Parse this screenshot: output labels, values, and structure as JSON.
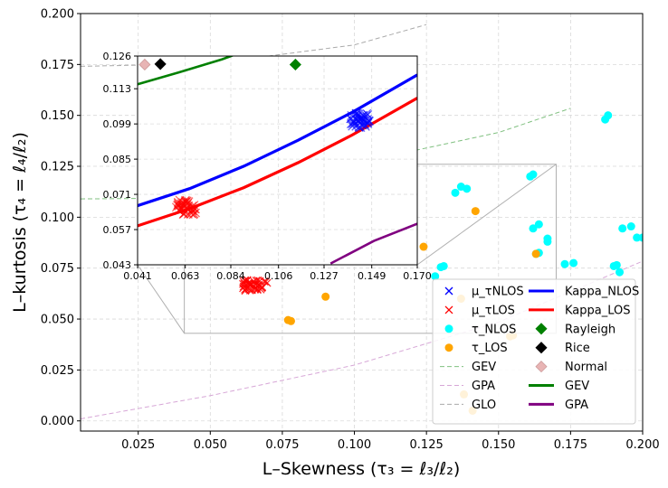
{
  "chart_data": {
    "type": "scatter",
    "xlabel": "L–Skewness (τ₃ = ℓ₃/ℓ₂)",
    "ylabel": "L–kurtosis (τ₄ = ℓ₄/ℓ₂)",
    "xlim": [
      0.005,
      0.2
    ],
    "ylim": [
      -0.005,
      0.2
    ],
    "x_ticks": [
      "0.025",
      "0.050",
      "0.075",
      "0.100",
      "0.125",
      "0.150",
      "0.175",
      "0.200"
    ],
    "y_ticks": [
      "0.000",
      "0.025",
      "0.050",
      "0.075",
      "0.100",
      "0.125",
      "0.150",
      "0.175",
      "0.200"
    ],
    "grid": true,
    "legend_position": "lower-right",
    "series": [
      {
        "name": "μ_τNLOS",
        "marker": "x",
        "color": "#0000ff",
        "center": [
          0.102,
          0.1005
        ],
        "count": 40
      },
      {
        "name": "μ_τLOS",
        "marker": "x",
        "color": "#ff0000",
        "center": [
          0.066,
          0.0665
        ],
        "count": 40
      },
      {
        "name": "τ_NLOS",
        "marker": "o",
        "color": "#00ffff",
        "x": [
          0.135,
          0.137,
          0.139,
          0.13,
          0.131,
          0.161,
          0.162,
          0.162,
          0.164,
          0.167,
          0.167,
          0.164,
          0.163,
          0.176,
          0.173,
          0.187,
          0.188,
          0.191,
          0.193,
          0.196,
          0.198,
          0.19,
          0.192,
          0.128,
          0.2
        ],
        "y": [
          0.112,
          0.115,
          0.114,
          0.0755,
          0.076,
          0.12,
          0.121,
          0.0945,
          0.0965,
          0.0895,
          0.088,
          0.0825,
          0.082,
          0.0775,
          0.077,
          0.148,
          0.15,
          0.0765,
          0.0945,
          0.0955,
          0.09,
          0.076,
          0.073,
          0.071,
          0.09
        ]
      },
      {
        "name": "τ_LOS",
        "marker": "o",
        "color": "#ffa500",
        "x": [
          0.142,
          0.124,
          0.09,
          0.077,
          0.078,
          0.137,
          0.154,
          0.155,
          0.163,
          0.138,
          0.141
        ],
        "y": [
          0.103,
          0.0855,
          0.061,
          0.0495,
          0.049,
          0.06,
          0.0415,
          0.042,
          0.082,
          0.013,
          0.005
        ]
      },
      {
        "name": "Rayleigh",
        "marker": "D",
        "color": "#008000",
        "x": [
          0.1138
        ],
        "y": [
          0.1226
        ]
      },
      {
        "name": "Rice",
        "marker": "D",
        "color": "#000000",
        "x": [
          0.0515
        ],
        "y": [
          0.1228
        ]
      },
      {
        "name": "Normal",
        "marker": "D",
        "color": "#e8b4b4",
        "x": [
          0.0443
        ],
        "y": [
          0.1226
        ]
      }
    ],
    "curves": [
      {
        "name": "Kappa_NLOS",
        "style": "solid",
        "color": "#0000ff",
        "points": [
          [
            0.041,
            0.0665
          ],
          [
            0.065,
            0.0733
          ],
          [
            0.09,
            0.0822
          ],
          [
            0.115,
            0.0925
          ],
          [
            0.14,
            0.1036
          ],
          [
            0.17,
            0.1185
          ]
        ]
      },
      {
        "name": "Kappa_LOS",
        "style": "solid",
        "color": "#ff0000",
        "points": [
          [
            0.041,
            0.0585
          ],
          [
            0.065,
            0.0653
          ],
          [
            0.09,
            0.0737
          ],
          [
            0.115,
            0.0836
          ],
          [
            0.14,
            0.0946
          ],
          [
            0.17,
            0.1093
          ]
        ]
      },
      {
        "name": "GEV",
        "style": "solid",
        "color": "#008000",
        "points": [
          [
            0.041,
            0.1148
          ],
          [
            0.06,
            0.1195
          ],
          [
            0.08,
            0.1247
          ],
          [
            0.1,
            0.131
          ]
        ]
      },
      {
        "name": "GPA",
        "style": "solid",
        "color": "#800080",
        "points": [
          [
            0.13,
            0.0435
          ],
          [
            0.15,
            0.0525
          ],
          [
            0.17,
            0.0593
          ]
        ]
      },
      {
        "name": "GEV",
        "style": "dashed",
        "color": "#80c080",
        "points": [
          [
            0.005,
            0.109
          ],
          [
            0.05,
            0.1095
          ],
          [
            0.1,
            0.1264
          ],
          [
            0.15,
            0.1416
          ],
          [
            0.175,
            0.1535
          ]
        ]
      },
      {
        "name": "GPA",
        "style": "dashed",
        "color": "#d7a7d7",
        "points": [
          [
            0.005,
            0.001
          ],
          [
            0.05,
            0.0124
          ],
          [
            0.1,
            0.0274
          ],
          [
            0.15,
            0.0485
          ],
          [
            0.2,
            0.0784
          ]
        ]
      },
      {
        "name": "GLO",
        "style": "dashed",
        "color": "#aaaaaa",
        "points": [
          [
            0.005,
            0.1741
          ],
          [
            0.05,
            0.1754
          ],
          [
            0.1,
            0.1846
          ],
          [
            0.125,
            0.1946
          ]
        ]
      }
    ],
    "inset": {
      "xlim": [
        0.041,
        0.17
      ],
      "ylim": [
        0.043,
        0.126
      ],
      "x_ticks": [
        "0.041",
        "0.063",
        "0.084",
        "0.106",
        "0.127",
        "0.149",
        "0.170"
      ],
      "y_ticks": [
        "0.043",
        "0.057",
        "0.071",
        "0.085",
        "0.099",
        "0.113",
        "0.126"
      ],
      "clusters": [
        {
          "series": "μ_τNLOS",
          "center": [
            0.1435,
            0.1004
          ],
          "color": "#0000ff"
        },
        {
          "series": "μ_τLOS",
          "center": [
            0.0635,
            0.0658
          ],
          "color": "#ff0000"
        }
      ]
    },
    "legend": [
      {
        "label": "μ_τNLOS",
        "symbol": "x",
        "color": "#0000ff"
      },
      {
        "label": "μ_τLOS",
        "symbol": "x",
        "color": "#ff0000"
      },
      {
        "label": "τ_NLOS",
        "symbol": "o",
        "color": "#00ffff"
      },
      {
        "label": "τ_LOS",
        "symbol": "o",
        "color": "#ffa500"
      },
      {
        "label": "GEV",
        "symbol": "dashed",
        "color": "#80c080"
      },
      {
        "label": "GPA",
        "symbol": "dashed",
        "color": "#d7a7d7"
      },
      {
        "label": "GLO",
        "symbol": "dashed",
        "color": "#aaaaaa"
      },
      {
        "label": "Kappa_NLOS",
        "symbol": "line",
        "color": "#0000ff"
      },
      {
        "label": "Kappa_LOS",
        "symbol": "line",
        "color": "#ff0000"
      },
      {
        "label": "Rayleigh",
        "symbol": "D",
        "color": "#008000"
      },
      {
        "label": "Rice",
        "symbol": "D",
        "color": "#000000"
      },
      {
        "label": "Normal",
        "symbol": "D",
        "color": "#e8b4b4"
      },
      {
        "label": "GEV",
        "symbol": "line",
        "color": "#008000"
      },
      {
        "label": "GPA",
        "symbol": "line",
        "color": "#800080"
      }
    ]
  }
}
